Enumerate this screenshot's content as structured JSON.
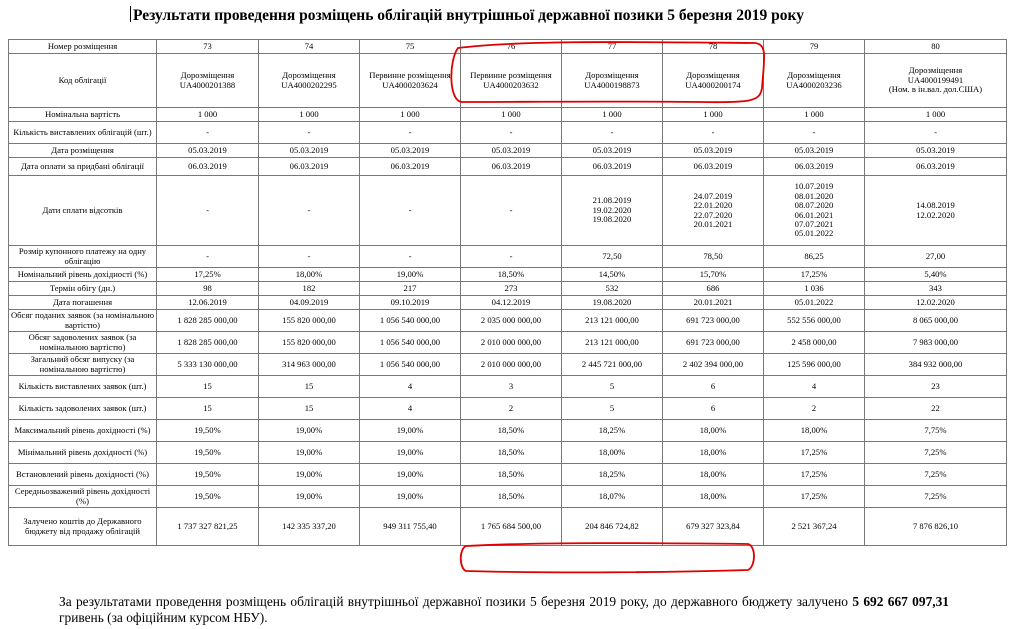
{
  "title": "Результати проведення розміщень облігацій внутрішньої державної позики 5 березня 2019 року",
  "columns": [
    "73",
    "74",
    "75",
    "76",
    "77",
    "78",
    "79",
    "80"
  ],
  "rows": [
    {
      "label": "Номер розміщення",
      "cells": [
        "73",
        "74",
        "75",
        "76",
        "77",
        "78",
        "79",
        "80"
      ]
    },
    {
      "label": "Код облігації",
      "cells": [
        "Дорозміщення\nUA4000201388",
        "Дорозміщення\nUA4000202295",
        "Первинне розміщення\nUA4000203624",
        "Первинне розміщення\nUA4000203632",
        "Дорозміщення\nUA4000198873",
        "Дорозміщення\nUA4000200174",
        "Дорозміщення\nUA4000203236",
        "Дорозміщення\nUA4000199491\n(Ном. в ін.вал. дол.США)"
      ]
    },
    {
      "label": "Номінальна вартість",
      "cells": [
        "1 000",
        "1 000",
        "1 000",
        "1 000",
        "1 000",
        "1 000",
        "1 000",
        "1 000"
      ]
    },
    {
      "label": "Кількість виставлених облігацій (шт.)",
      "cells": [
        "-",
        "-",
        "-",
        "-",
        "-",
        "-",
        "-",
        "-"
      ]
    },
    {
      "label": "Дата розміщення",
      "cells": [
        "05.03.2019",
        "05.03.2019",
        "05.03.2019",
        "05.03.2019",
        "05.03.2019",
        "05.03.2019",
        "05.03.2019",
        "05.03.2019"
      ]
    },
    {
      "label": "Дата оплати за придбані облігації",
      "cells": [
        "06.03.2019",
        "06.03.2019",
        "06.03.2019",
        "06.03.2019",
        "06.03.2019",
        "06.03.2019",
        "06.03.2019",
        "06.03.2019"
      ]
    },
    {
      "label": "Дати сплати відсотків",
      "cells": [
        "-",
        "-",
        "-",
        "-",
        "21.08.2019\n19.02.2020\n19.08.2020",
        "24.07.2019\n22.01.2020\n22.07.2020\n20.01.2021",
        "10.07.2019\n08.01.2020\n08.07.2020\n06.01.2021\n07.07.2021\n05.01.2022",
        "14.08.2019\n12.02.2020"
      ]
    },
    {
      "label": "Розмір купонного платежу на одну облігацію",
      "cells": [
        "-",
        "-",
        "-",
        "-",
        "72,50",
        "78,50",
        "86,25",
        "27,00"
      ]
    },
    {
      "label": "Номінальний рівень дохідності (%)",
      "cells": [
        "17,25%",
        "18,00%",
        "19,00%",
        "18,50%",
        "14,50%",
        "15,70%",
        "17,25%",
        "5,40%"
      ]
    },
    {
      "label": "Термін обігу (дн.)",
      "cells": [
        "98",
        "182",
        "217",
        "273",
        "532",
        "686",
        "1 036",
        "343"
      ]
    },
    {
      "label": "Дата погашення",
      "cells": [
        "12.06.2019",
        "04.09.2019",
        "09.10.2019",
        "04.12.2019",
        "19.08.2020",
        "20.01.2021",
        "05.01.2022",
        "12.02.2020"
      ]
    },
    {
      "label": "Обсяг поданих заявок (за номінальною вартістю)",
      "cells": [
        "1 828 285 000,00",
        "155 820 000,00",
        "1 056 540 000,00",
        "2 035 000 000,00",
        "213 121 000,00",
        "691 723 000,00",
        "552 556 000,00",
        "8 065 000,00"
      ]
    },
    {
      "label": "Обсяг задоволених заявок (за номінальною вартістю)",
      "cells": [
        "1 828 285 000,00",
        "155 820 000,00",
        "1 056 540 000,00",
        "2 010 000 000,00",
        "213 121 000,00",
        "691 723 000,00",
        "2 458 000,00",
        "7 983 000,00"
      ]
    },
    {
      "label": "Загальний обсяг випуску (за номінальною вартістю)",
      "cells": [
        "5 333 130 000,00",
        "314 963 000,00",
        "1 056 540 000,00",
        "2 010 000 000,00",
        "2 445 721 000,00",
        "2 402 394 000,00",
        "125 596 000,00",
        "384 932 000,00"
      ]
    },
    {
      "label": "Кількість виставлених заявок (шт.)",
      "cells": [
        "15",
        "15",
        "4",
        "3",
        "5",
        "6",
        "4",
        "23"
      ]
    },
    {
      "label": "Кількість задоволених заявок (шт.)",
      "cells": [
        "15",
        "15",
        "4",
        "2",
        "5",
        "6",
        "2",
        "22"
      ]
    },
    {
      "label": "Максимальний рівень дохідності (%)",
      "cells": [
        "19,50%",
        "19,00%",
        "19,00%",
        "18,50%",
        "18,25%",
        "18,00%",
        "18,00%",
        "7,75%"
      ]
    },
    {
      "label": "Мінімальний рівень дохідності (%)",
      "cells": [
        "19,50%",
        "19,00%",
        "19,00%",
        "18,50%",
        "18,00%",
        "18,00%",
        "17,25%",
        "7,25%"
      ]
    },
    {
      "label": "Встановлений рівень дохідності (%)",
      "cells": [
        "19,50%",
        "19,00%",
        "19,00%",
        "18,50%",
        "18,25%",
        "18,00%",
        "17,25%",
        "7,25%"
      ]
    },
    {
      "label": "Середньозважений рівень дохідності (%)",
      "cells": [
        "19,50%",
        "19,00%",
        "19,00%",
        "18,50%",
        "18,07%",
        "18,00%",
        "17,25%",
        "7,25%"
      ]
    },
    {
      "label": "Залучено коштів до Державного бюджету від продажу облігацій",
      "cells": [
        "1 737 327 821,25",
        "142 335 337,20",
        "949 311 755,40",
        "1 765 684 500,00",
        "204 846 724,82",
        "679 327 323,84",
        "2 521 367,24",
        "7 876 826,10"
      ]
    }
  ],
  "note": {
    "text_before": "За результатами проведення розміщень облігацій внутрішньої державної позики 5 березня 2019 року, до державного бюджету залучено ",
    "total": "5 692 667 097,31",
    "text_after": " гривень (за офіційним курсом НБУ)."
  },
  "annotation_color": "#e00000"
}
